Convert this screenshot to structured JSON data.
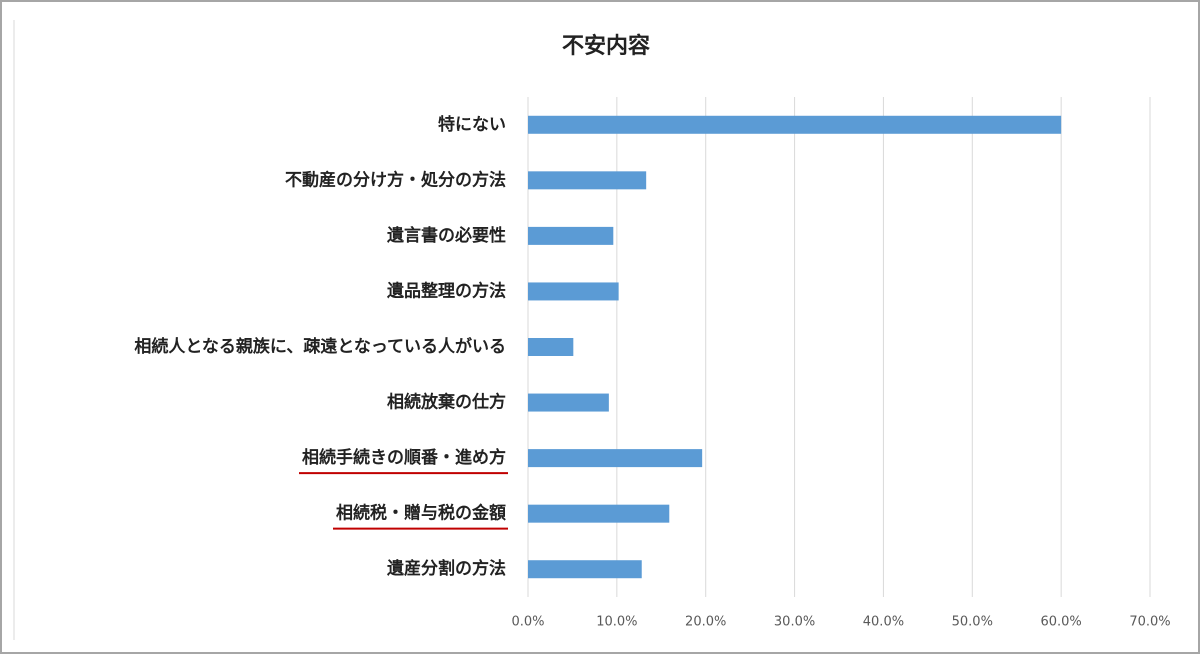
{
  "chart_data": {
    "type": "barh",
    "title": "不安内容",
    "categories": [
      "特にない",
      "不動産の分け方・処分の方法",
      "遺言書の必要性",
      "遺品整理の方法",
      "相続人となる親族に、疎遠となっている人がいる",
      "相続放棄の仕方",
      "相続手続きの順番・進め方",
      "相続税・贈与税の金額",
      "遺産分割の方法"
    ],
    "values": [
      60,
      13.3,
      9.6,
      10.2,
      5.1,
      9.1,
      19.6,
      15.9,
      12.8
    ],
    "color": "#5b9bd5",
    "underlined": [
      false,
      false,
      false,
      false,
      false,
      false,
      true,
      true,
      false
    ],
    "underline_color": "#c00000",
    "xlim": [
      0,
      70
    ],
    "xticks": [
      {
        "value": 0,
        "label": "0.0%"
      },
      {
        "value": 10,
        "label": "10.0%"
      },
      {
        "value": 20,
        "label": "20.0%"
      },
      {
        "value": 30,
        "label": "30.0%"
      },
      {
        "value": 40,
        "label": "40.0%"
      },
      {
        "value": 50,
        "label": "50.0%"
      },
      {
        "value": 60,
        "label": "60.0%"
      },
      {
        "value": 70,
        "label": "70.0%"
      }
    ],
    "grid": true
  }
}
